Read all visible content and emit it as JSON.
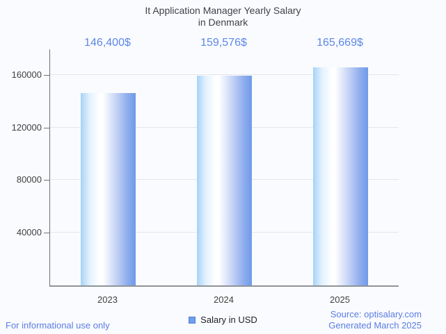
{
  "title": {
    "line1": "It Application Manager Yearly Salary",
    "line2": "in Denmark"
  },
  "chart_data": {
    "type": "bar",
    "title": "It Application Manager Yearly Salary in Denmark",
    "categories": [
      "2023",
      "2024",
      "2025"
    ],
    "series": [
      {
        "name": "Salary in USD",
        "values": [
          146400,
          159576,
          165669
        ]
      }
    ],
    "value_labels": [
      "146,400$",
      "159,576$",
      "165,669$"
    ],
    "xlabel": "",
    "ylabel": "",
    "ylim": [
      0,
      179500
    ],
    "yticks": [
      40000,
      80000,
      120000,
      160000
    ],
    "ytick_labels": [
      "40000",
      "80000",
      "120000",
      "160000"
    ],
    "grid": true,
    "legend_position": "bottom"
  },
  "legend": {
    "label": "Salary in USD"
  },
  "footer": {
    "left": "For informational use only",
    "source_line1": "Source: optisalary.com",
    "source_line2": "Generated March 2025"
  },
  "colors": {
    "background": "#fafbfe",
    "value_label_blue": "#5c86e8",
    "footer_blue": "#5b7ce2",
    "title_text": "#3e4249",
    "axis_text": "#404040",
    "grid_line": "#e6e6e9",
    "axis_line": "#6d7074",
    "baseline": "#8f9499",
    "bar_edge_light": "#a7d2f7",
    "bar_edge_dark": "#6f9ae9",
    "legend_swatch": "#6fa0ec",
    "legend_swatch_border": "#4d7fd0",
    "legend_text": "#202124"
  }
}
